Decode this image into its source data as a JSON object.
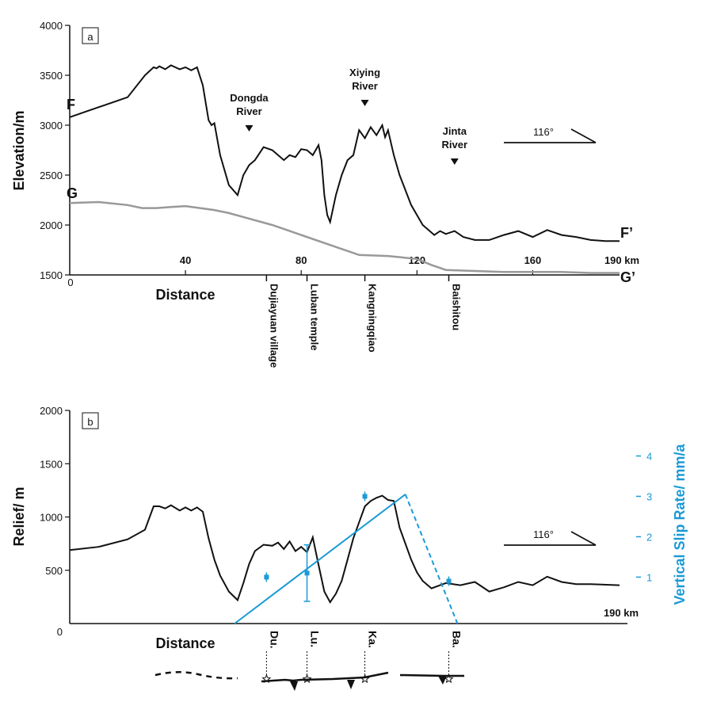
{
  "chart_data": [
    {
      "type": "line",
      "panel": "a",
      "ylabel": "Elevation/m",
      "xlabel": "Distance",
      "x_unit": "190 km",
      "ylim": [
        1500,
        4000
      ],
      "xlim": [
        0,
        190
      ],
      "yticks": [
        "1500",
        "2000",
        "2500",
        "3000",
        "3500",
        "4000"
      ],
      "xticks": [
        "0",
        "40",
        "80",
        "120",
        "160"
      ],
      "direction_label": "116°",
      "series": [
        {
          "name": "F",
          "end_label": "F’",
          "color": "#111111",
          "x": [
            0,
            5,
            12,
            20,
            26,
            29,
            30,
            31,
            33,
            35,
            38,
            40,
            42,
            44,
            46,
            48,
            49,
            50,
            52,
            55,
            58,
            60,
            62,
            64,
            67,
            70,
            72,
            74,
            76,
            78,
            80,
            82,
            84,
            86,
            87,
            88,
            89,
            90,
            92,
            94,
            96,
            98,
            100,
            102,
            104,
            106,
            108,
            109,
            110,
            112,
            114,
            116,
            118,
            120,
            122,
            124,
            126,
            128,
            130,
            133,
            136,
            140,
            145,
            150,
            155,
            160,
            165,
            170,
            175,
            180,
            185,
            190
          ],
          "y": [
            3080,
            3130,
            3200,
            3280,
            3500,
            3580,
            3570,
            3590,
            3560,
            3600,
            3560,
            3580,
            3550,
            3580,
            3400,
            3050,
            3000,
            3020,
            2700,
            2400,
            2300,
            2500,
            2600,
            2650,
            2780,
            2750,
            2700,
            2650,
            2700,
            2680,
            2760,
            2750,
            2700,
            2800,
            2650,
            2300,
            2100,
            2030,
            2300,
            2500,
            2650,
            2700,
            2950,
            2870,
            2980,
            2900,
            3000,
            2880,
            2950,
            2700,
            2500,
            2350,
            2200,
            2100,
            2000,
            1950,
            1900,
            1940,
            1910,
            1940,
            1880,
            1850,
            1850,
            1900,
            1940,
            1880,
            1950,
            1900,
            1880,
            1850,
            1840,
            1840
          ]
        },
        {
          "name": "G",
          "end_label": "G’",
          "color": "#999999",
          "x": [
            0,
            10,
            20,
            25,
            30,
            35,
            40,
            45,
            50,
            55,
            60,
            70,
            80,
            90,
            100,
            110,
            120,
            125,
            130,
            140,
            150,
            160,
            170,
            180,
            190
          ],
          "y": [
            2220,
            2230,
            2200,
            2170,
            2170,
            2180,
            2190,
            2170,
            2150,
            2120,
            2080,
            2000,
            1900,
            1800,
            1700,
            1690,
            1660,
            1600,
            1550,
            1540,
            1530,
            1530,
            1530,
            1520,
            1520
          ]
        }
      ],
      "annotations": [
        {
          "label": "Dongda\nRiver",
          "x": 62
        },
        {
          "label": "Xiying\nRiver",
          "x": 102
        },
        {
          "label": "Jinta\nRiver",
          "x": 133
        }
      ],
      "locations": [
        {
          "label": "Dujiayuan village",
          "x": 68
        },
        {
          "label": "Luban temple",
          "x": 82
        },
        {
          "label": "Kangningqiao",
          "x": 102
        },
        {
          "label": "Baishitou",
          "x": 131
        }
      ]
    },
    {
      "type": "line",
      "panel": "b",
      "ylabel": "Relief/ m",
      "y2label": "Vertical Slip Rate/ mm/a",
      "xlabel": "Distance",
      "x_unit": "190 km",
      "ylim": [
        0,
        2000
      ],
      "xlim": [
        0,
        190
      ],
      "yticks": [
        "0",
        "500",
        "1000",
        "1500",
        "2000"
      ],
      "y2lim": [
        -0.15,
        4.5
      ],
      "y2ticks": [
        "1",
        "2",
        "3",
        "4"
      ],
      "direction_label": "116°",
      "relief": {
        "x": [
          0,
          10,
          20,
          26,
          29,
          31,
          33,
          35,
          38,
          40,
          42,
          44,
          46,
          48,
          50,
          52,
          55,
          58,
          60,
          62,
          64,
          67,
          70,
          72,
          74,
          76,
          78,
          80,
          82,
          84,
          86,
          88,
          90,
          92,
          94,
          96,
          98,
          100,
          102,
          104,
          106,
          108,
          110,
          112,
          114,
          116,
          118,
          120,
          122,
          125,
          130,
          135,
          140,
          145,
          150,
          155,
          160,
          165,
          170,
          175,
          180,
          190
        ],
        "y": [
          690,
          720,
          790,
          880,
          1100,
          1100,
          1080,
          1110,
          1060,
          1090,
          1060,
          1090,
          1050,
          800,
          600,
          450,
          300,
          220,
          380,
          560,
          680,
          740,
          730,
          760,
          700,
          770,
          680,
          720,
          670,
          810,
          550,
          300,
          200,
          280,
          400,
          600,
          800,
          950,
          1100,
          1150,
          1180,
          1200,
          1160,
          1150,
          900,
          750,
          600,
          480,
          400,
          330,
          380,
          360,
          390,
          300,
          340,
          390,
          360,
          440,
          390,
          370,
          370,
          360
        ]
      },
      "slip_rate": {
        "points": [
          {
            "label": "Du.",
            "x": 68,
            "y": 1.0
          },
          {
            "label": "Lu.",
            "x": 82,
            "y": 1.1,
            "err_low": 0.4,
            "err_high": 1.8
          },
          {
            "label": "Ka.",
            "x": 102,
            "y": 3.0
          },
          {
            "label": "Ba.",
            "x": 131,
            "y": 0.9
          }
        ],
        "fit_rise": {
          "x": [
            57,
            116
          ],
          "y": [
            -0.15,
            3.05
          ]
        },
        "fit_fall": {
          "x": [
            116,
            134
          ],
          "y": [
            3.05,
            -0.15
          ]
        }
      }
    }
  ],
  "panel_labels": [
    "a",
    "b"
  ],
  "end_labels": [
    "F",
    "G"
  ],
  "direction_label": "116°",
  "profile_a": {
    "ylabel": "Elevation/m",
    "xlabel": "Distance",
    "x_unit": "190 km"
  },
  "profile_b": {
    "ylabel": "Relief/ m",
    "y2label": "Vertical Slip Rate/ mm/a",
    "xlabel": "Distance",
    "x_unit": "190 km"
  }
}
